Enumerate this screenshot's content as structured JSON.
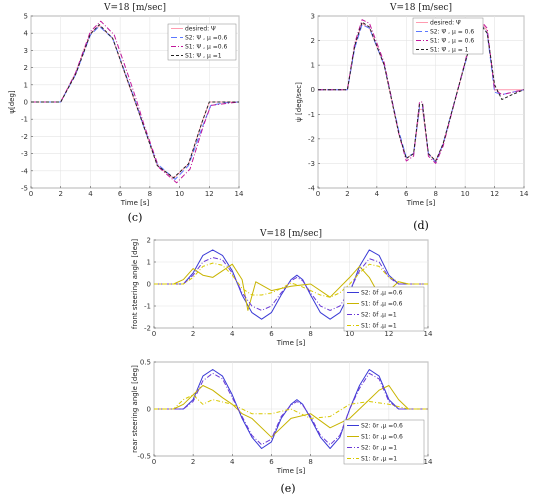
{
  "chart_data": [
    {
      "id": "c",
      "type": "line",
      "title": "V=18 [m/sec]",
      "xlabel": "Time [s]",
      "ylabel": "ψ[deg]",
      "caption": "(c)",
      "xlim": [
        0,
        14
      ],
      "ylim": [
        -5,
        5
      ],
      "xticks": [
        0,
        2,
        4,
        6,
        8,
        10,
        12,
        14
      ],
      "yticks": [
        -5,
        -4,
        -3,
        -2,
        -1,
        0,
        1,
        2,
        3,
        4,
        5
      ],
      "grid": true,
      "legend_position": "top-right",
      "series": [
        {
          "name": "desired: Ψ",
          "color": "#ff9bb0",
          "dash": "",
          "x": [
            0,
            2,
            3,
            4,
            4.6,
            5.5,
            6.5,
            7,
            7.5,
            8.5,
            9.6,
            10.6,
            11.5,
            12,
            14
          ],
          "y": [
            0,
            0,
            1.7,
            4.0,
            4.45,
            3.7,
            1.2,
            0,
            -1.2,
            -3.7,
            -4.45,
            -3.6,
            -1.2,
            0,
            0
          ]
        },
        {
          "name": "S2: Ψ , μ =0.6",
          "color": "#5b78ff",
          "dash": "6,3",
          "x": [
            0,
            2,
            3,
            4,
            4.6,
            5.5,
            6.5,
            7,
            7.5,
            8.5,
            9.7,
            10.6,
            11.6,
            12.1,
            13,
            14
          ],
          "y": [
            0,
            0,
            1.6,
            3.9,
            4.4,
            3.7,
            1.3,
            0.1,
            -1.2,
            -3.6,
            -4.5,
            -3.7,
            -1.3,
            -0.2,
            -0.05,
            0
          ]
        },
        {
          "name": "S1: Ψ , μ =0.6",
          "color": "#c0189a",
          "dash": "5,2,1,2",
          "x": [
            0,
            2,
            3,
            4,
            4.7,
            5.6,
            6.6,
            7.1,
            7.6,
            8.6,
            9.8,
            10.7,
            11.6,
            12.1,
            13,
            14
          ],
          "y": [
            0,
            0,
            1.7,
            4.1,
            4.7,
            3.9,
            1.4,
            0.1,
            -1.3,
            -3.8,
            -4.7,
            -3.9,
            -1.4,
            -0.2,
            -0.1,
            0
          ]
        },
        {
          "name": "S1: Ψ , μ =1",
          "color": "#222222",
          "dash": "3,2",
          "x": [
            0,
            2,
            3,
            4,
            4.6,
            5.5,
            6.5,
            7,
            7.5,
            8.5,
            9.6,
            10.6,
            11.5,
            12,
            14
          ],
          "y": [
            0,
            0,
            1.6,
            3.95,
            4.5,
            3.7,
            1.25,
            0.05,
            -1.2,
            -3.7,
            -4.4,
            -3.6,
            -1.2,
            0,
            0
          ]
        }
      ]
    },
    {
      "id": "d",
      "type": "line",
      "title": "V=18 [m/sec]",
      "xlabel": "Time [s]",
      "ylabel": "ψ̇ [deg/sec]",
      "caption": "(d)",
      "xlim": [
        0,
        14
      ],
      "ylim": [
        -4,
        3
      ],
      "xticks": [
        0,
        2,
        4,
        6,
        8,
        10,
        12,
        14
      ],
      "yticks": [
        -4,
        -3,
        -2,
        -1,
        0,
        1,
        2,
        3
      ],
      "grid": true,
      "legend_position": "top-right",
      "series": [
        {
          "name": "desired: Ψ̇",
          "color": "#ff9bb0",
          "dash": "",
          "x": [
            0,
            2,
            2.5,
            3,
            3.5,
            4.5,
            5.5,
            6,
            6.5,
            6.9,
            7.1,
            7.5,
            8,
            8.5,
            9.5,
            10.5,
            11,
            11.5,
            12,
            14
          ],
          "y": [
            0,
            0,
            1.8,
            2.7,
            2.5,
            1.0,
            -1.8,
            -2.8,
            -2.6,
            -0.8,
            -0.8,
            -2.6,
            -2.9,
            -2.2,
            0,
            2.2,
            2.8,
            2.4,
            0,
            0
          ]
        },
        {
          "name": "S2: Ψ̇ , μ = 0.6",
          "color": "#5b78ff",
          "dash": "6,3",
          "x": [
            0,
            2,
            2.5,
            3,
            3.5,
            4.5,
            5.5,
            6,
            6.5,
            6.9,
            7.1,
            7.5,
            8,
            8.5,
            9.5,
            10.5,
            11,
            11.5,
            12,
            12.5,
            14
          ],
          "y": [
            0,
            0,
            1.7,
            2.65,
            2.5,
            1.0,
            -1.7,
            -2.75,
            -2.6,
            -0.7,
            -0.7,
            -2.6,
            -2.95,
            -2.2,
            0,
            2.15,
            2.75,
            2.3,
            -0.1,
            -0.2,
            0
          ]
        },
        {
          "name": "S1: Ψ̇ , μ = 0.6",
          "color": "#c0189a",
          "dash": "5,2,1,2",
          "x": [
            0,
            2,
            2.5,
            3,
            3.5,
            4.5,
            5.5,
            6,
            6.5,
            6.9,
            7.1,
            7.5,
            8,
            8.5,
            9.5,
            10.5,
            11,
            11.5,
            12,
            12.5,
            14
          ],
          "y": [
            0,
            0,
            1.9,
            2.85,
            2.7,
            1.1,
            -1.8,
            -2.9,
            -2.7,
            -0.5,
            -0.5,
            -2.7,
            -3.0,
            -2.3,
            0,
            2.3,
            2.85,
            2.5,
            0,
            -0.2,
            0
          ]
        },
        {
          "name": "S1: Ψ̇ , μ = 1",
          "color": "#222222",
          "dash": "3,2",
          "x": [
            0,
            2,
            2.5,
            3,
            3.5,
            4.5,
            5.5,
            6,
            6.5,
            6.9,
            7.1,
            7.5,
            8,
            8.5,
            9.5,
            10.5,
            11,
            11.5,
            12,
            12.5,
            13.2,
            14
          ],
          "y": [
            0,
            0,
            1.8,
            2.75,
            2.55,
            1.0,
            -1.8,
            -2.8,
            -2.6,
            -0.6,
            -0.6,
            -2.6,
            -2.9,
            -2.2,
            0,
            2.2,
            2.7,
            2.3,
            0.2,
            -0.4,
            -0.2,
            0
          ]
        }
      ]
    },
    {
      "id": "e-front",
      "type": "line",
      "title": "V=18 [m/sec]",
      "xlabel": "Time [s]",
      "ylabel": "front steering angle [deg]",
      "xlim": [
        0,
        14
      ],
      "ylim": [
        -2,
        2
      ],
      "xticks": [
        0,
        2,
        4,
        6,
        8,
        10,
        12,
        14
      ],
      "yticks": [
        -2,
        -1,
        0,
        1,
        2
      ],
      "grid": true,
      "legend_position": "right",
      "series": [
        {
          "name": "S2: δf ,μ =0.6",
          "color": "#3a3ad6",
          "dash": "",
          "x": [
            0,
            1.5,
            2,
            2.5,
            3,
            3.5,
            4,
            4.5,
            5,
            5.5,
            6,
            6.5,
            7,
            7.3,
            7.6,
            8,
            8.5,
            9,
            9.5,
            10,
            10.5,
            11,
            11.5,
            12,
            12.5,
            13,
            14
          ],
          "y": [
            0,
            0,
            0.5,
            1.3,
            1.55,
            1.3,
            0.6,
            -0.5,
            -1.3,
            -1.6,
            -1.3,
            -0.5,
            0.2,
            0.4,
            0.2,
            -0.5,
            -1.3,
            -1.6,
            -1.3,
            -0.4,
            0.8,
            1.55,
            1.3,
            0.4,
            0,
            0,
            0
          ]
        },
        {
          "name": "S1: δf ,μ =0.6",
          "color": "#c8b400",
          "dash": "",
          "x": [
            0,
            1,
            1.5,
            2,
            2.5,
            3,
            3.5,
            4,
            4.5,
            4.8,
            5.2,
            6,
            7,
            8,
            9,
            10,
            10.5,
            11,
            11.5,
            12,
            12.5,
            13,
            14
          ],
          "y": [
            0,
            0,
            0.2,
            0.7,
            0.4,
            0.3,
            0.6,
            0.9,
            0.2,
            -1.2,
            0.1,
            -0.3,
            -0.1,
            0.0,
            -0.6,
            0.3,
            0.8,
            0.3,
            -0.5,
            -0.3,
            0.1,
            0,
            0
          ]
        },
        {
          "name": "S2: δf ,μ =1",
          "color": "#6a3ad6",
          "dash": "5,2,1,2",
          "x": [
            0,
            1.5,
            2,
            2.5,
            3,
            3.5,
            4,
            4.5,
            5,
            5.5,
            6,
            6.5,
            7,
            7.3,
            7.6,
            8,
            8.5,
            9,
            9.5,
            10,
            10.5,
            11,
            11.5,
            12,
            12.5,
            13,
            14
          ],
          "y": [
            0,
            0,
            0.4,
            1.0,
            1.2,
            1.1,
            0.5,
            -0.4,
            -1.0,
            -1.2,
            -1.0,
            -0.4,
            0.15,
            0.3,
            0.15,
            -0.4,
            -1.0,
            -1.2,
            -1.0,
            -0.3,
            0.6,
            1.15,
            1.0,
            0.3,
            0,
            0,
            0
          ]
        },
        {
          "name": "S1: δf ,μ =1",
          "color": "#d8c800",
          "dash": "4,2,1,2",
          "x": [
            0,
            1.5,
            2,
            2.5,
            3,
            3.5,
            4,
            4.5,
            5,
            5.5,
            6,
            6.5,
            7,
            7.5,
            8,
            8.5,
            9,
            9.5,
            10,
            10.5,
            11,
            11.5,
            12,
            12.5,
            13,
            14
          ],
          "y": [
            0,
            0,
            0.3,
            0.8,
            0.95,
            0.85,
            0.4,
            -0.2,
            -0.5,
            -0.5,
            -0.4,
            -0.2,
            0.05,
            -0.1,
            -0.3,
            -0.5,
            -0.6,
            -0.4,
            0,
            0.5,
            0.9,
            0.8,
            0.3,
            0.1,
            0,
            0
          ]
        }
      ]
    },
    {
      "id": "e-rear",
      "type": "line",
      "title": "",
      "xlabel": "Time [s]",
      "ylabel": "rear steering angle [deg]",
      "caption": "(e)",
      "xlim": [
        0,
        14
      ],
      "ylim": [
        -0.5,
        0.5
      ],
      "xticks": [
        0,
        2,
        4,
        6,
        8,
        10,
        12,
        14
      ],
      "yticks": [
        -0.5,
        0,
        0.5
      ],
      "grid": true,
      "legend_position": "bottom-right",
      "series": [
        {
          "name": "S2: δr ,μ =0.6",
          "color": "#3a3ad6",
          "dash": "",
          "x": [
            0,
            1.5,
            2,
            2.5,
            3,
            3.5,
            4,
            4.5,
            5,
            5.5,
            6,
            6.5,
            7,
            7.3,
            7.6,
            8,
            8.5,
            9,
            9.5,
            10,
            10.5,
            11,
            11.5,
            12,
            12.5,
            13,
            14
          ],
          "y": [
            0,
            0,
            0.1,
            0.35,
            0.42,
            0.35,
            0.15,
            -0.1,
            -0.3,
            -0.42,
            -0.35,
            -0.1,
            0.05,
            0.1,
            0.05,
            -0.1,
            -0.3,
            -0.42,
            -0.3,
            0,
            0.25,
            0.42,
            0.35,
            0.1,
            0,
            0,
            0
          ]
        },
        {
          "name": "S1: δr ,μ =0.6",
          "color": "#c8b400",
          "dash": "",
          "x": [
            0,
            1,
            1.5,
            2,
            2.5,
            3,
            3.5,
            4,
            4.5,
            5,
            6,
            7,
            8,
            9,
            10,
            11,
            11.5,
            12,
            12.5,
            13,
            14
          ],
          "y": [
            0,
            0,
            0.05,
            0.15,
            0.25,
            0.2,
            0.12,
            0.05,
            -0.05,
            -0.1,
            -0.3,
            -0.1,
            -0.05,
            -0.2,
            -0.1,
            0.1,
            0.2,
            0.25,
            0.1,
            0,
            0
          ]
        },
        {
          "name": "S2: δr ,μ =1",
          "color": "#6a3ad6",
          "dash": "5,2,1,2",
          "x": [
            0,
            1.5,
            2,
            2.5,
            3,
            3.5,
            4,
            4.5,
            5,
            5.5,
            6,
            6.5,
            7,
            7.3,
            7.6,
            8,
            8.5,
            9,
            9.5,
            10,
            10.5,
            11,
            11.5,
            12,
            12.5,
            13,
            14
          ],
          "y": [
            0,
            0,
            0.08,
            0.3,
            0.38,
            0.32,
            0.12,
            -0.08,
            -0.28,
            -0.38,
            -0.32,
            -0.08,
            0.04,
            0.08,
            0.04,
            -0.08,
            -0.28,
            -0.38,
            -0.28,
            0,
            0.22,
            0.38,
            0.32,
            0.08,
            0,
            0,
            0
          ]
        },
        {
          "name": "S1: δr ,μ =1",
          "color": "#d8c800",
          "dash": "4,2,1,2",
          "x": [
            0,
            1,
            1.5,
            2,
            2.5,
            3,
            4,
            5,
            6,
            7,
            8,
            9,
            10,
            11,
            12,
            13,
            14
          ],
          "y": [
            0,
            0,
            0.1,
            0.15,
            0.05,
            0.1,
            0.05,
            -0.05,
            -0.05,
            0.0,
            -0.1,
            -0.08,
            0.05,
            0.08,
            0.05,
            0,
            0
          ]
        }
      ]
    }
  ]
}
